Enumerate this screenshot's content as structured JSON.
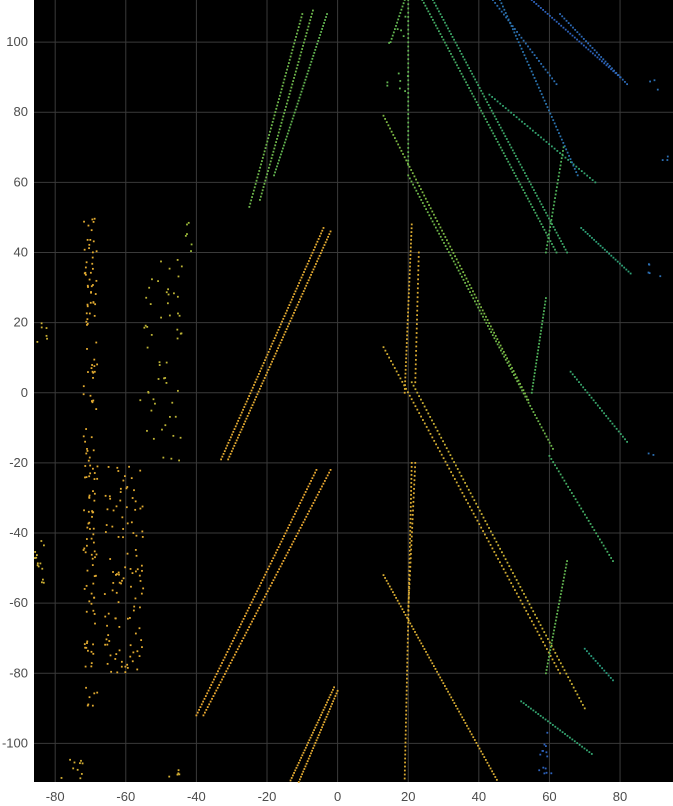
{
  "chart_data": {
    "type": "scatter",
    "title": "",
    "xlabel": "",
    "ylabel": "",
    "xlim": [
      -86,
      95
    ],
    "ylim": [
      -111,
      112
    ],
    "grid": true,
    "background": "#000000",
    "grid_color": "#3a3a3a",
    "colormap": [
      "#f0a830",
      "#c9b133",
      "#8fbb3b",
      "#4fb35a",
      "#2a9f7a",
      "#2a7fa5",
      "#2f57c8"
    ],
    "x_ticks": [
      -80,
      -60,
      -40,
      -20,
      0,
      20,
      40,
      60,
      80
    ],
    "y_ticks": [
      100,
      80,
      60,
      40,
      20,
      0,
      -20,
      -40,
      -60,
      -80,
      -100
    ],
    "x_tick_labels": [
      "-80",
      "-60",
      "-40",
      "-20",
      "0",
      "20",
      "40",
      "60",
      "80"
    ],
    "y_tick_labels": [
      "100",
      "80",
      "60",
      "40",
      "20",
      "0",
      "-20",
      "-40",
      "-60",
      "-80",
      "-100"
    ],
    "series": [
      {
        "kind": "line",
        "c": 0.05,
        "from": [
          -14,
          -112
        ],
        "to": [
          -1,
          -84
        ],
        "n": 40
      },
      {
        "kind": "line",
        "c": 0.05,
        "from": [
          -11,
          -111
        ],
        "to": [
          0,
          -85
        ],
        "n": 36
      },
      {
        "kind": "line",
        "c": 0.02,
        "from": [
          -40,
          -92
        ],
        "to": [
          -6,
          -22
        ],
        "n": 90
      },
      {
        "kind": "line",
        "c": 0.02,
        "from": [
          -38,
          -92
        ],
        "to": [
          -2,
          -22
        ],
        "n": 90
      },
      {
        "kind": "line",
        "c": 0.05,
        "from": [
          -33,
          -19
        ],
        "to": [
          -4,
          47
        ],
        "n": 85
      },
      {
        "kind": "line",
        "c": 0.05,
        "from": [
          -31,
          -19
        ],
        "to": [
          -2,
          46
        ],
        "n": 85
      },
      {
        "kind": "line",
        "c": 0.42,
        "from": [
          -25,
          53
        ],
        "to": [
          -10,
          108
        ],
        "n": 60
      },
      {
        "kind": "line",
        "c": 0.42,
        "from": [
          -22,
          55
        ],
        "to": [
          -7,
          109
        ],
        "n": 60
      },
      {
        "kind": "line",
        "c": 0.45,
        "from": [
          -18,
          62
        ],
        "to": [
          -3,
          108
        ],
        "n": 55
      },
      {
        "kind": "scatter_band",
        "c": 0.06,
        "x": [
          -72,
          -68
        ],
        "y": [
          -90,
          50
        ],
        "n": 150
      },
      {
        "kind": "scatter_band",
        "c": 0.06,
        "x": [
          -66,
          -55
        ],
        "y": [
          -80,
          -20
        ],
        "n": 110
      },
      {
        "kind": "scatter_band",
        "c": 0.2,
        "x": [
          -56,
          -44
        ],
        "y": [
          -20,
          38
        ],
        "n": 55
      },
      {
        "kind": "scatter_band",
        "c": 0.15,
        "x": [
          -86,
          -83
        ],
        "y": [
          -55,
          -40
        ],
        "n": 14
      },
      {
        "kind": "scatter_band",
        "c": 0.15,
        "x": [
          -86,
          -82
        ],
        "y": [
          14,
          20
        ],
        "n": 6
      },
      {
        "kind": "scatter_band",
        "c": 0.12,
        "x": [
          -48,
          -44
        ],
        "y": [
          -110,
          -106
        ],
        "n": 5
      },
      {
        "kind": "scatter_band",
        "c": 0.12,
        "x": [
          -80,
          -72
        ],
        "y": [
          -110,
          -104
        ],
        "n": 10
      },
      {
        "kind": "scatter_band",
        "c": 0.3,
        "x": [
          -43,
          -40
        ],
        "y": [
          40,
          50
        ],
        "n": 6
      },
      {
        "kind": "line",
        "c": 0.08,
        "from": [
          19,
          -110
        ],
        "to": [
          21,
          -20
        ],
        "n": 80
      },
      {
        "kind": "line",
        "c": 0.08,
        "from": [
          20,
          -62
        ],
        "to": [
          22,
          -20
        ],
        "n": 35
      },
      {
        "kind": "line",
        "c": 0.08,
        "from": [
          19,
          0
        ],
        "to": [
          21,
          48
        ],
        "n": 45
      },
      {
        "kind": "line",
        "c": 0.08,
        "from": [
          22,
          3
        ],
        "to": [
          23,
          40
        ],
        "n": 30
      },
      {
        "kind": "line",
        "c": 0.45,
        "from": [
          15,
          100
        ],
        "to": [
          19,
          112
        ],
        "n": 14
      },
      {
        "kind": "line",
        "c": 0.45,
        "from": [
          20,
          65
        ],
        "to": [
          20,
          112
        ],
        "n": 40
      },
      {
        "kind": "line",
        "c": 0.1,
        "from": [
          13,
          -52
        ],
        "to": [
          46,
          -112
        ],
        "n": 75
      },
      {
        "kind": "line",
        "c": 0.12,
        "from": [
          13,
          13
        ],
        "to": [
          63,
          -80
        ],
        "n": 95
      },
      {
        "kind": "line",
        "c": 0.16,
        "from": [
          21,
          3
        ],
        "to": [
          70,
          -90
        ],
        "n": 95
      },
      {
        "kind": "line",
        "c": 0.38,
        "from": [
          13,
          79
        ],
        "to": [
          54,
          -2
        ],
        "n": 90
      },
      {
        "kind": "line",
        "c": 0.42,
        "from": [
          20,
          62
        ],
        "to": [
          61,
          -16
        ],
        "n": 90
      },
      {
        "kind": "line",
        "c": 0.55,
        "from": [
          24,
          112
        ],
        "to": [
          62,
          40
        ],
        "n": 90
      },
      {
        "kind": "line",
        "c": 0.58,
        "from": [
          27,
          112
        ],
        "to": [
          65,
          40
        ],
        "n": 90
      },
      {
        "kind": "line",
        "c": 0.62,
        "from": [
          43,
          85
        ],
        "to": [
          73,
          60
        ],
        "n": 40
      },
      {
        "kind": "line",
        "c": 0.5,
        "from": [
          55,
          0
        ],
        "to": [
          59,
          27
        ],
        "n": 30
      },
      {
        "kind": "line",
        "c": 0.5,
        "from": [
          59,
          40
        ],
        "to": [
          64,
          70
        ],
        "n": 30
      },
      {
        "kind": "line",
        "c": 0.45,
        "from": [
          59,
          -80
        ],
        "to": [
          65,
          -48
        ],
        "n": 35
      },
      {
        "kind": "line",
        "c": 0.6,
        "from": [
          66,
          6
        ],
        "to": [
          82,
          -14
        ],
        "n": 28
      },
      {
        "kind": "line",
        "c": 0.65,
        "from": [
          69,
          47
        ],
        "to": [
          83,
          34
        ],
        "n": 24
      },
      {
        "kind": "line",
        "c": 0.68,
        "from": [
          70,
          -73
        ],
        "to": [
          78,
          -82
        ],
        "n": 14
      },
      {
        "kind": "line",
        "c": 0.55,
        "from": [
          60,
          -18
        ],
        "to": [
          78,
          -48
        ],
        "n": 35
      },
      {
        "kind": "line",
        "c": 0.62,
        "from": [
          52,
          -88
        ],
        "to": [
          72,
          -103
        ],
        "n": 30
      },
      {
        "kind": "line",
        "c": 0.9,
        "from": [
          44,
          112
        ],
        "to": [
          62,
          88
        ],
        "n": 30
      },
      {
        "kind": "line",
        "c": 0.95,
        "from": [
          55,
          112
        ],
        "to": [
          80,
          90
        ],
        "n": 40
      },
      {
        "kind": "line",
        "c": 0.88,
        "from": [
          46,
          112
        ],
        "to": [
          68,
          62
        ],
        "n": 55
      },
      {
        "kind": "line",
        "c": 0.92,
        "from": [
          63,
          108
        ],
        "to": [
          82,
          88
        ],
        "n": 32
      },
      {
        "kind": "scatter_band",
        "c": 0.95,
        "x": [
          57,
          61
        ],
        "y": [
          -111,
          -96
        ],
        "n": 14
      },
      {
        "kind": "scatter_band",
        "c": 0.9,
        "x": [
          88,
          93
        ],
        "y": [
          33,
          37
        ],
        "n": 5
      },
      {
        "kind": "scatter_band",
        "c": 0.9,
        "x": [
          88,
          91
        ],
        "y": [
          86,
          90
        ],
        "n": 3
      },
      {
        "kind": "scatter_band",
        "c": 0.9,
        "x": [
          92,
          95
        ],
        "y": [
          64,
          68
        ],
        "n": 3
      },
      {
        "kind": "scatter_band",
        "c": 0.9,
        "x": [
          88,
          90
        ],
        "y": [
          -18,
          -16
        ],
        "n": 2
      },
      {
        "kind": "scatter_band",
        "c": 0.45,
        "x": [
          14,
          21
        ],
        "y": [
          86,
          110
        ],
        "n": 12
      }
    ]
  }
}
